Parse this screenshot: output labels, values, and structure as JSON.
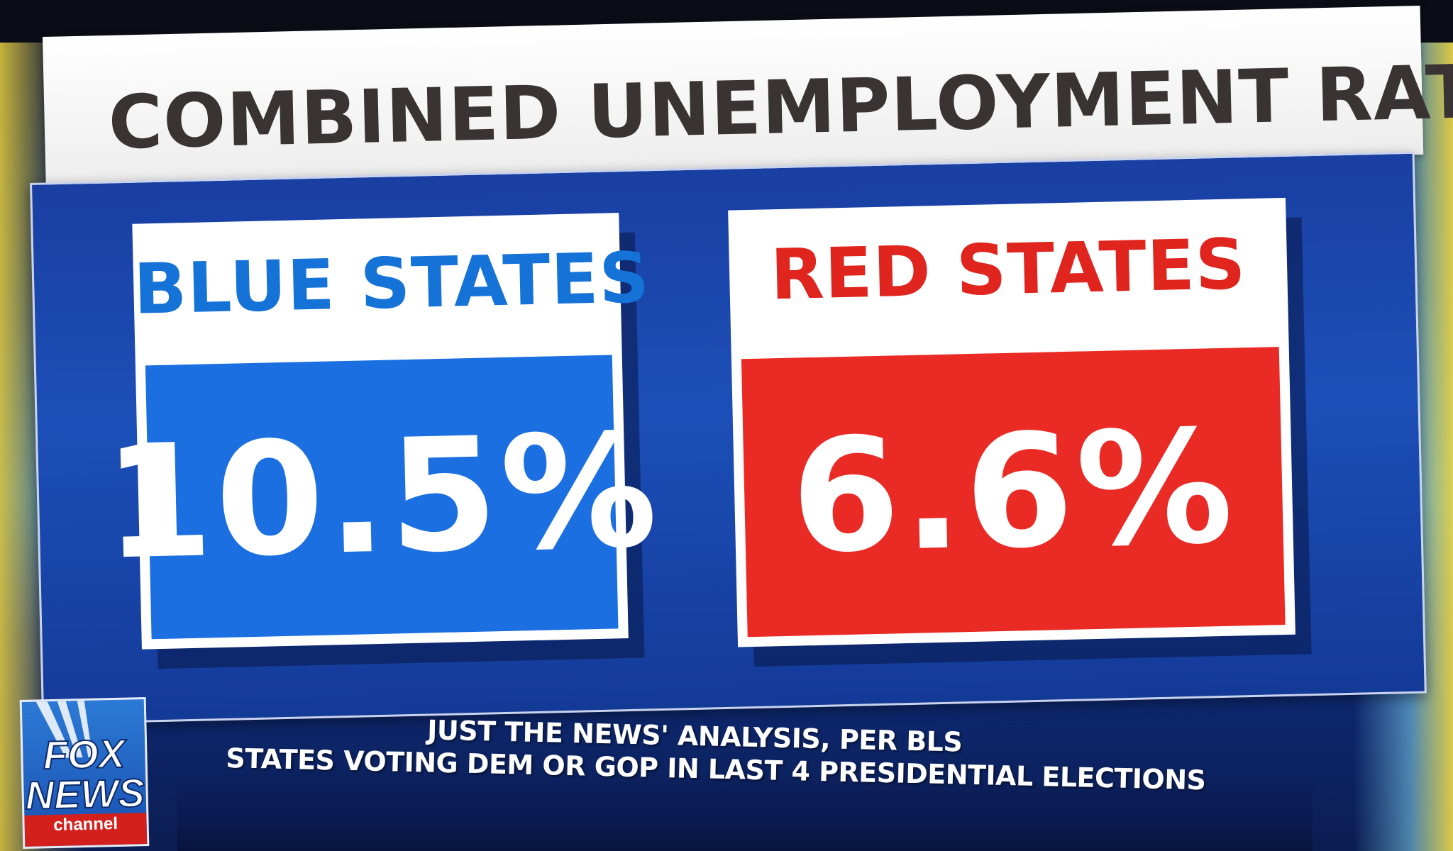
{
  "title": "COMBINED UNEMPLOYMENT RATE",
  "cards": [
    {
      "label": "BLUE STATES",
      "value": "10.5%",
      "color": "#1b6fe0"
    },
    {
      "label": "RED STATES",
      "value": "6.6%",
      "color": "#ea2b25"
    }
  ],
  "source": {
    "line1": "JUST THE NEWS' ANALYSIS, PER BLS",
    "line2": "STATES VOTING DEM OR GOP IN LAST 4 PRESIDENTIAL ELECTIONS"
  },
  "logo": {
    "line1": "FOX",
    "line2": "NEWS",
    "sub": "channel"
  },
  "colors": {
    "panel": "#1c4fb8",
    "title_text": "#3a3333",
    "blue_label": "#1573d8",
    "red_label": "#e0241e"
  }
}
